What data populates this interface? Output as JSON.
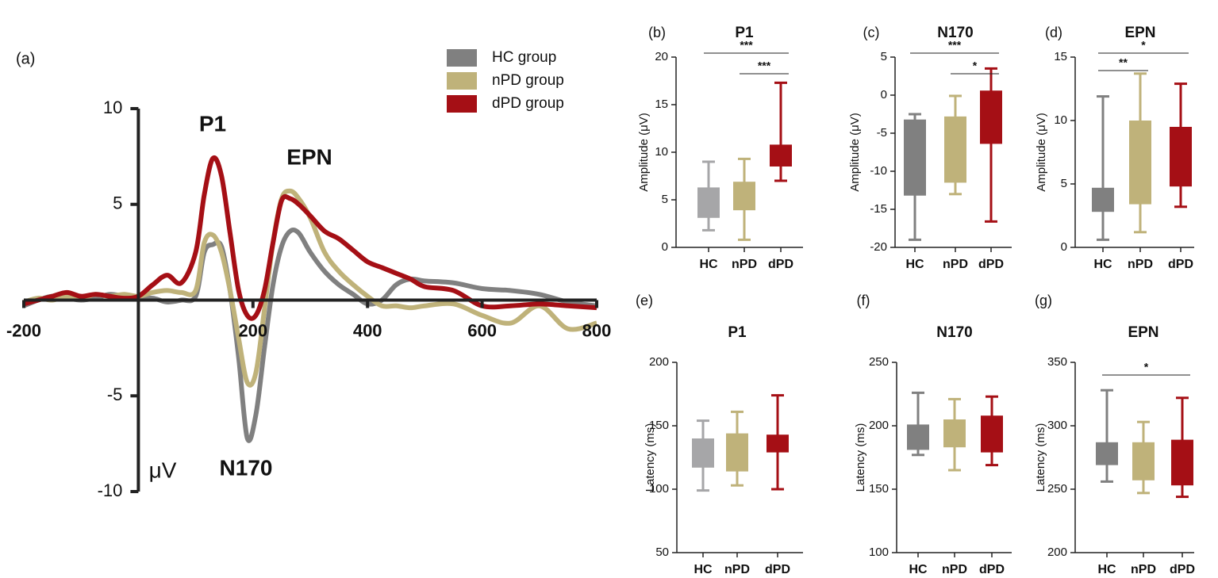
{
  "chart_data": [
    {
      "type": "line",
      "panel": "(a)",
      "ylabel": "μV",
      "annotations": [
        "P1",
        "EPN",
        "N170"
      ],
      "legend": "top-right",
      "xlim": [
        -200,
        800
      ],
      "xticks": [
        -200,
        200,
        400,
        600,
        800
      ],
      "ylim": [
        -10,
        10
      ],
      "yticks": [
        10,
        5,
        -5,
        -10
      ],
      "x": [
        -200,
        -175,
        -150,
        -125,
        -100,
        -75,
        -50,
        -25,
        0,
        25,
        50,
        75,
        100,
        115,
        130,
        145,
        160,
        175,
        190,
        205,
        220,
        235,
        250,
        265,
        280,
        300,
        325,
        350,
        375,
        400,
        425,
        450,
        475,
        500,
        550,
        600,
        650,
        700,
        750,
        800
      ],
      "series": [
        {
          "name": "HC group",
          "color": "#808080",
          "values": [
            -0.3,
            0,
            0.2,
            0.1,
            0,
            0.1,
            0.3,
            0.2,
            0.1,
            0.1,
            -0.1,
            0,
            0.2,
            2.5,
            2.9,
            2.8,
            0.5,
            -3,
            -7.2,
            -6,
            -2.5,
            0.8,
            2.8,
            3.6,
            3.5,
            2.5,
            1.5,
            0.8,
            0.3,
            -0.2,
            0,
            0.8,
            1.1,
            1,
            0.9,
            0.6,
            0.5,
            0.3,
            -0.1,
            -0.3
          ]
        },
        {
          "name": "nPD group",
          "color": "#bfb27a",
          "values": [
            -0.1,
            0.1,
            0,
            0.2,
            0.1,
            0.3,
            0.2,
            0.3,
            0.2,
            0.4,
            0.5,
            0.4,
            0.5,
            3,
            3.4,
            2.5,
            0.5,
            -2,
            -4.3,
            -3.8,
            -0.5,
            3,
            5.3,
            5.7,
            5.3,
            4.3,
            2.5,
            1.5,
            0.8,
            0.2,
            -0.3,
            -0.3,
            -0.4,
            -0.3,
            -0.2,
            -0.8,
            -1.2,
            -0.3,
            -1.5,
            -1.2
          ]
        },
        {
          "name": "dPD group",
          "color": "#a50f15",
          "values": [
            -0.2,
            0,
            0.2,
            0.4,
            0.2,
            0.3,
            0.2,
            0.1,
            0.2,
            0.8,
            1.3,
            0.9,
            2.5,
            5.5,
            7.4,
            6.5,
            3.5,
            0.5,
            -0.8,
            -0.8,
            0.5,
            3,
            5.2,
            5.3,
            5,
            4.4,
            3.6,
            3.2,
            2.6,
            2,
            1.7,
            1.4,
            1.1,
            0.7,
            0.5,
            -0.3,
            -0.3,
            -0.2,
            -0.3,
            -0.4
          ]
        }
      ]
    },
    {
      "type": "box",
      "panel": "(b)",
      "title": "P1",
      "ylabel": "Amplitude (μV)",
      "ylim": [
        0,
        20
      ],
      "yticks": [
        0,
        5,
        10,
        15,
        20
      ],
      "categories": [
        "HC",
        "nPD",
        "dPD"
      ],
      "boxes": [
        {
          "color": "#a6a6a8",
          "min": 1.8,
          "q1": 3.1,
          "q3": 6.3,
          "max": 9
        },
        {
          "color": "#bfb27a",
          "min": 0.8,
          "q1": 3.9,
          "q3": 6.9,
          "max": 9.3
        },
        {
          "color": "#a50f15",
          "min": 7,
          "q1": 8.5,
          "q3": 10.8,
          "max": 17.3
        }
      ],
      "brackets": [
        {
          "from": "HC",
          "to": "dPD",
          "label": "***"
        },
        {
          "from": "nPD",
          "to": "dPD",
          "label": "***"
        }
      ]
    },
    {
      "type": "box",
      "panel": "(c)",
      "title": "N170",
      "ylabel": "Amplitude (μV)",
      "ylim": [
        -20,
        5
      ],
      "yticks": [
        -20,
        -15,
        -10,
        -5,
        0,
        5
      ],
      "categories": [
        "HC",
        "nPD",
        "dPD"
      ],
      "boxes": [
        {
          "color": "#808080",
          "min": -19,
          "q1": -13.2,
          "q3": -3.2,
          "max": -2.5
        },
        {
          "color": "#bfb27a",
          "min": -13,
          "q1": -11.5,
          "q3": -2.8,
          "max": -0.1
        },
        {
          "color": "#a50f15",
          "min": -16.6,
          "q1": -6.4,
          "q3": 0.6,
          "max": 3.5
        }
      ],
      "brackets": [
        {
          "from": "HC",
          "to": "dPD",
          "label": "***"
        },
        {
          "from": "nPD",
          "to": "dPD",
          "label": "*"
        }
      ]
    },
    {
      "type": "box",
      "panel": "(d)",
      "title": "EPN",
      "ylabel": "Amplitude (μV)",
      "ylim": [
        0,
        15
      ],
      "yticks": [
        0,
        5,
        10,
        15
      ],
      "categories": [
        "HC",
        "nPD",
        "dPD"
      ],
      "boxes": [
        {
          "color": "#808080",
          "min": 0.6,
          "q1": 2.8,
          "q3": 4.7,
          "max": 11.9
        },
        {
          "color": "#bfb27a",
          "min": 1.2,
          "q1": 3.4,
          "q3": 10,
          "max": 13.7
        },
        {
          "color": "#a50f15",
          "min": 3.2,
          "q1": 4.8,
          "q3": 9.5,
          "max": 12.9
        }
      ],
      "brackets": [
        {
          "from": "HC",
          "to": "dPD",
          "label": "*"
        },
        {
          "from": "HC",
          "to": "nPD",
          "label": "**"
        }
      ]
    },
    {
      "type": "box",
      "panel": "(e)",
      "title": "P1",
      "ylabel": "Latency (ms)",
      "ylim": [
        50,
        200
      ],
      "yticks": [
        50,
        100,
        150,
        200
      ],
      "categories": [
        "HC",
        "nPD",
        "dPD"
      ],
      "boxes": [
        {
          "color": "#a6a6a8",
          "min": 99,
          "q1": 117,
          "q3": 140,
          "max": 154
        },
        {
          "color": "#bfb27a",
          "min": 103,
          "q1": 114,
          "q3": 144,
          "max": 161
        },
        {
          "color": "#a50f15",
          "min": 100,
          "q1": 129,
          "q3": 143,
          "max": 174
        }
      ],
      "brackets": []
    },
    {
      "type": "box",
      "panel": "(f)",
      "title": "N170",
      "ylabel": "Latency (ms)",
      "ylim": [
        100,
        250
      ],
      "yticks": [
        100,
        150,
        200,
        250
      ],
      "categories": [
        "HC",
        "nPD",
        "dPD"
      ],
      "boxes": [
        {
          "color": "#808080",
          "min": 177,
          "q1": 181,
          "q3": 201,
          "max": 226
        },
        {
          "color": "#bfb27a",
          "min": 165,
          "q1": 183,
          "q3": 205,
          "max": 221
        },
        {
          "color": "#a50f15",
          "min": 169,
          "q1": 179,
          "q3": 208,
          "max": 223
        }
      ],
      "brackets": []
    },
    {
      "type": "box",
      "panel": "(g)",
      "title": "EPN",
      "ylabel": "Latency (ms)",
      "ylim": [
        200,
        350
      ],
      "yticks": [
        200,
        250,
        300,
        350
      ],
      "categories": [
        "HC",
        "nPD",
        "dPD"
      ],
      "boxes": [
        {
          "color": "#808080",
          "min": 256,
          "q1": 269,
          "q3": 287,
          "max": 328
        },
        {
          "color": "#bfb27a",
          "min": 247,
          "q1": 257,
          "q3": 287,
          "max": 303
        },
        {
          "color": "#a50f15",
          "min": 244,
          "q1": 253,
          "q3": 289,
          "max": 322
        }
      ],
      "brackets": [
        {
          "from": "HC",
          "to": "dPD",
          "label": "*"
        }
      ]
    }
  ]
}
